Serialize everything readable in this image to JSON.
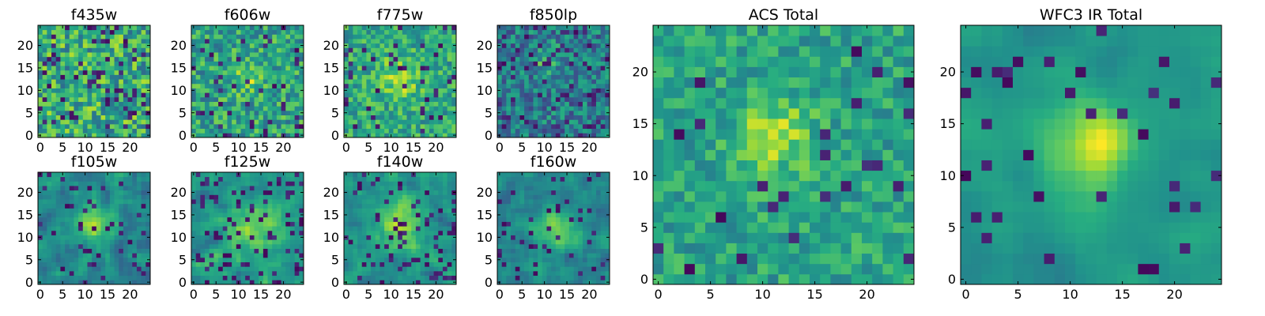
{
  "chart_data": [
    {
      "type": "heatmap",
      "title": "f435w",
      "shape": [
        25,
        25
      ],
      "xlim": [
        0,
        24
      ],
      "ylim": [
        0,
        24
      ],
      "xticks": [
        0,
        5,
        10,
        15,
        20
      ],
      "yticks": [
        0,
        5,
        10,
        15,
        20
      ],
      "colormap": "viridis",
      "description": "uniform noise, no clear source"
    },
    {
      "type": "heatmap",
      "title": "f606w",
      "shape": [
        25,
        25
      ],
      "xlim": [
        0,
        24
      ],
      "ylim": [
        0,
        24
      ],
      "xticks": [
        0,
        5,
        10,
        15,
        20
      ],
      "yticks": [
        0,
        5,
        10,
        15,
        20
      ],
      "colormap": "viridis",
      "source_center": [
        12,
        13
      ]
    },
    {
      "type": "heatmap",
      "title": "f775w",
      "shape": [
        25,
        25
      ],
      "xlim": [
        0,
        24
      ],
      "ylim": [
        0,
        24
      ],
      "xticks": [
        0,
        5,
        10,
        15,
        20
      ],
      "yticks": [
        0,
        5,
        10,
        15,
        20
      ],
      "colormap": "viridis",
      "source_center": [
        12,
        13
      ]
    },
    {
      "type": "heatmap",
      "title": "f850lp",
      "shape": [
        25,
        25
      ],
      "xlim": [
        0,
        24
      ],
      "ylim": [
        0,
        24
      ],
      "xticks": [
        0,
        5,
        10,
        15,
        20
      ],
      "yticks": [
        0,
        5,
        10,
        15,
        20
      ],
      "colormap": "viridis",
      "source_center": [
        11,
        17
      ]
    },
    {
      "type": "heatmap",
      "title": "f105w",
      "shape": [
        25,
        25
      ],
      "xlim": [
        0,
        24
      ],
      "ylim": [
        0,
        24
      ],
      "xticks": [
        0,
        5,
        10,
        15,
        20
      ],
      "yticks": [
        0,
        5,
        10,
        15,
        20
      ],
      "colormap": "viridis",
      "source_center": [
        12,
        13
      ]
    },
    {
      "type": "heatmap",
      "title": "f125w",
      "shape": [
        25,
        25
      ],
      "xlim": [
        0,
        24
      ],
      "ylim": [
        0,
        24
      ],
      "xticks": [
        0,
        5,
        10,
        15,
        20
      ],
      "yticks": [
        0,
        5,
        10,
        15,
        20
      ],
      "colormap": "viridis",
      "source_center": [
        13,
        12
      ]
    },
    {
      "type": "heatmap",
      "title": "f140w",
      "shape": [
        25,
        25
      ],
      "xlim": [
        0,
        24
      ],
      "ylim": [
        0,
        24
      ],
      "xticks": [
        0,
        5,
        10,
        15,
        20
      ],
      "yticks": [
        0,
        5,
        10,
        15,
        20
      ],
      "colormap": "viridis",
      "source_center": [
        12,
        13
      ]
    },
    {
      "type": "heatmap",
      "title": "f160w",
      "shape": [
        25,
        25
      ],
      "xlim": [
        0,
        24
      ],
      "ylim": [
        0,
        24
      ],
      "xticks": [
        0,
        5,
        10,
        15,
        20
      ],
      "yticks": [
        0,
        5,
        10,
        15,
        20
      ],
      "colormap": "viridis",
      "source_center": [
        12,
        12
      ]
    },
    {
      "type": "heatmap",
      "title": "ACS Total",
      "shape": [
        25,
        25
      ],
      "xlim": [
        0,
        24
      ],
      "ylim": [
        0,
        24
      ],
      "xticks": [
        0,
        5,
        10,
        15,
        20
      ],
      "yticks": [
        0,
        5,
        10,
        15,
        20
      ],
      "colormap": "viridis",
      "source_center": [
        11,
        14
      ]
    },
    {
      "type": "heatmap",
      "title": "WFC3 IR Total",
      "shape": [
        25,
        25
      ],
      "xlim": [
        0,
        24
      ],
      "ylim": [
        0,
        24
      ],
      "xticks": [
        0,
        5,
        10,
        15,
        20
      ],
      "yticks": [
        0,
        5,
        10,
        15,
        20
      ],
      "colormap": "viridis",
      "source_center": [
        12,
        13
      ]
    }
  ],
  "colors": {
    "viridis_dark": "#440154",
    "viridis_mid": "#21918c",
    "viridis_light": "#fde725"
  }
}
